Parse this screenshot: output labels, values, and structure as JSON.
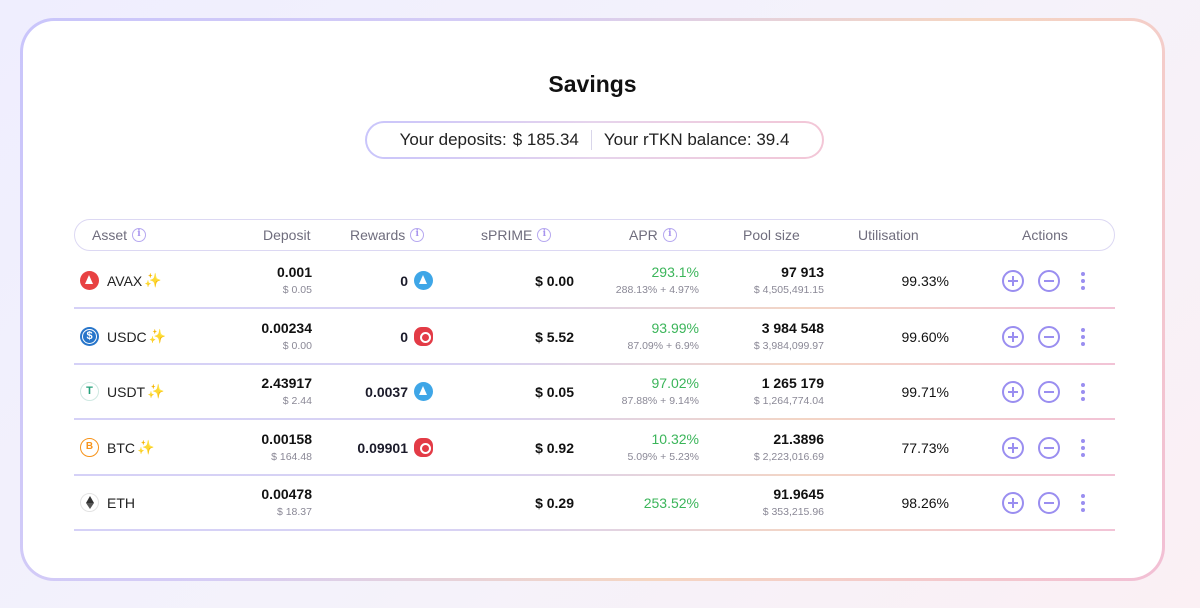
{
  "page": {
    "title": "Savings"
  },
  "summary": {
    "deposits_label": "Your deposits:",
    "deposits_value": "$ 185.34",
    "rtkn_label": "Your rTKN balance:",
    "rtkn_value": "39.4"
  },
  "table": {
    "headers": {
      "asset": "Asset",
      "deposit": "Deposit",
      "rewards": "Rewards",
      "sprime": "sPRIME",
      "apr": "APR",
      "pool_size": "Pool size",
      "utilisation": "Utilisation",
      "actions": "Actions"
    },
    "rows": [
      {
        "asset": "AVAX",
        "coin_icon": "avax-icon",
        "sparkle": "✨",
        "deposit": "0.001",
        "deposit_usd": "$ 0.05",
        "reward": "0",
        "reward_icon": "blue",
        "sprime": "$ 0.00",
        "apr": "293.1%",
        "apr_detail": "288.13% + 4.97%",
        "pool": "97 913",
        "pool_usd": "$ 4,505,491.15",
        "utilisation": "99.33%"
      },
      {
        "asset": "USDC",
        "coin_icon": "usdc-icon",
        "sparkle": "✨",
        "deposit": "0.00234",
        "deposit_usd": "$ 0.00",
        "reward": "0",
        "reward_icon": "red",
        "sprime": "$ 5.52",
        "apr": "93.99%",
        "apr_detail": "87.09% + 6.9%",
        "pool": "3 984 548",
        "pool_usd": "$ 3,984,099.97",
        "utilisation": "99.60%"
      },
      {
        "asset": "USDT",
        "coin_icon": "usdt-icon",
        "sparkle": "✨",
        "deposit": "2.43917",
        "deposit_usd": "$ 2.44",
        "reward": "0.0037",
        "reward_icon": "blue",
        "sprime": "$ 0.05",
        "apr": "97.02%",
        "apr_detail": "87.88% + 9.14%",
        "pool": "1 265 179",
        "pool_usd": "$ 1,264,774.04",
        "utilisation": "99.71%"
      },
      {
        "asset": "BTC",
        "coin_icon": "btc-icon",
        "sparkle": "✨",
        "deposit": "0.00158",
        "deposit_usd": "$ 164.48",
        "reward": "0.09901",
        "reward_icon": "red",
        "sprime": "$ 0.92",
        "apr": "10.32%",
        "apr_detail": "5.09% + 5.23%",
        "pool": "21.3896",
        "pool_usd": "$ 2,223,016.69",
        "utilisation": "77.73%"
      },
      {
        "asset": "ETH",
        "coin_icon": "eth-icon",
        "sparkle": "",
        "deposit": "0.00478",
        "deposit_usd": "$ 18.37",
        "reward": "",
        "reward_icon": "",
        "sprime": "$ 0.29",
        "apr": "253.52%",
        "apr_detail": "",
        "pool": "91.9645",
        "pool_usd": "$ 353,215.96",
        "utilisation": "98.26%"
      }
    ]
  },
  "colors": {
    "accent": "#9a8ef0",
    "apr_green": "#3bb55a"
  }
}
